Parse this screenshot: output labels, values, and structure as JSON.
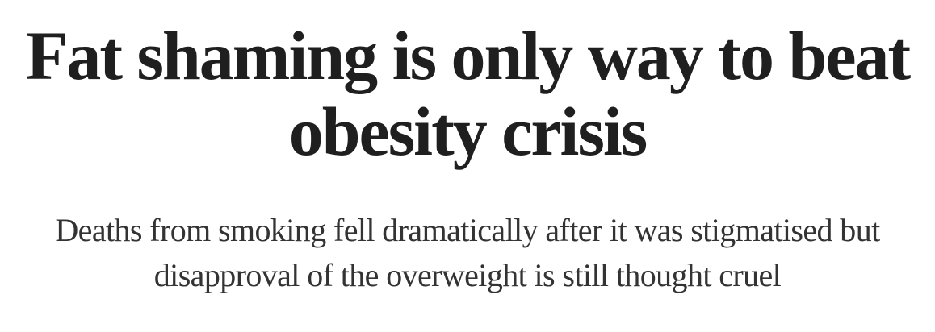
{
  "article": {
    "headline": "Fat shaming is only way to beat obesity crisis",
    "standfirst": "Deaths from smoking fell dramatically after it was stigmatised but disapproval of the overweight is still thought cruel"
  }
}
